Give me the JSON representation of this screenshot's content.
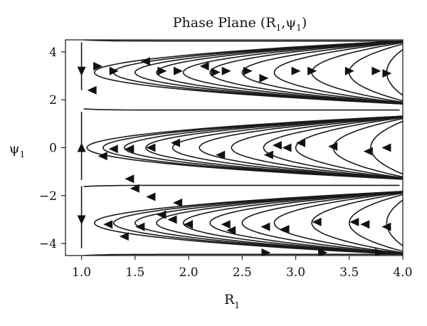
{
  "chart_data": {
    "type": "streamplot",
    "title": "Phase Plane (R",
    "title_sub_1": "1",
    "title_mid": ",ψ",
    "title_sub_2": "1",
    "title_end": ")",
    "xlabel": "R",
    "xlabel_sub": "1",
    "ylabel": "ψ",
    "ylabel_sub": "1",
    "xlim": [
      0.85,
      4.0
    ],
    "ylim": [
      -4.5,
      4.5
    ],
    "x_ticks": [
      1.0,
      1.5,
      2.0,
      2.5,
      3.0,
      3.5,
      4.0
    ],
    "x_tick_labels": [
      "1.0",
      "1.5",
      "2.0",
      "2.5",
      "3.0",
      "3.5",
      "4.0"
    ],
    "y_ticks": [
      -4,
      -2,
      0,
      2,
      4
    ],
    "y_tick_labels": [
      "−4",
      "−2",
      "0",
      "2",
      "4"
    ],
    "grid": false,
    "flow_bands": [
      {
        "center": 3.14,
        "vertex_r": [
          1.12,
          1.3,
          1.5,
          1.7,
          1.95,
          2.2,
          2.5,
          2.8,
          3.15,
          3.5,
          3.85
        ]
      },
      {
        "center": 0.0,
        "vertex_r": [
          1.05,
          1.2,
          1.4,
          1.6,
          1.85,
          2.1,
          2.4,
          2.7,
          3.0,
          3.35,
          3.7
        ]
      },
      {
        "center": -3.14,
        "vertex_r": [
          1.12,
          1.3,
          1.5,
          1.7,
          1.95,
          2.2,
          2.5,
          2.8,
          3.15,
          3.5,
          3.85
        ]
      }
    ],
    "separatrix_lines": [
      1.57,
      -1.57,
      4.45,
      -4.45
    ],
    "axis_line": {
      "r": 1.0,
      "segments": [
        [
          -4.2,
          -1.6
        ],
        [
          -1.35,
          1.5
        ],
        [
          2.4,
          4.4
        ]
      ]
    },
    "arrows": [
      {
        "r": 1.0,
        "psi": 3.2,
        "dir": "down"
      },
      {
        "r": 1.0,
        "psi": 0.0,
        "dir": "up"
      },
      {
        "r": 1.0,
        "psi": -3.0,
        "dir": "down"
      },
      {
        "r": 1.15,
        "psi": 3.4,
        "dir": "right"
      },
      {
        "r": 1.3,
        "psi": 3.2,
        "dir": "right"
      },
      {
        "r": 1.6,
        "psi": 3.6,
        "dir": "left"
      },
      {
        "r": 1.75,
        "psi": 3.2,
        "dir": "right"
      },
      {
        "r": 1.9,
        "psi": 3.2,
        "dir": "right"
      },
      {
        "r": 2.15,
        "psi": 3.4,
        "dir": "left"
      },
      {
        "r": 2.25,
        "psi": 3.15,
        "dir": "right"
      },
      {
        "r": 2.35,
        "psi": 3.2,
        "dir": "right"
      },
      {
        "r": 2.55,
        "psi": 3.2,
        "dir": "right"
      },
      {
        "r": 2.7,
        "psi": 2.9,
        "dir": "right"
      },
      {
        "r": 3.0,
        "psi": 3.2,
        "dir": "right"
      },
      {
        "r": 3.15,
        "psi": 3.2,
        "dir": "right"
      },
      {
        "r": 3.5,
        "psi": 3.2,
        "dir": "right"
      },
      {
        "r": 3.75,
        "psi": 3.2,
        "dir": "right"
      },
      {
        "r": 3.85,
        "psi": 3.1,
        "dir": "right"
      },
      {
        "r": 1.1,
        "psi": 2.4,
        "dir": "left"
      },
      {
        "r": 1.2,
        "psi": -0.35,
        "dir": "left"
      },
      {
        "r": 1.3,
        "psi": -0.05,
        "dir": "left"
      },
      {
        "r": 1.45,
        "psi": -0.05,
        "dir": "left"
      },
      {
        "r": 1.65,
        "psi": 0.0,
        "dir": "left"
      },
      {
        "r": 1.88,
        "psi": 0.2,
        "dir": "left"
      },
      {
        "r": 2.3,
        "psi": -0.3,
        "dir": "left"
      },
      {
        "r": 2.75,
        "psi": -0.3,
        "dir": "left"
      },
      {
        "r": 2.83,
        "psi": 0.1,
        "dir": "left"
      },
      {
        "r": 2.92,
        "psi": 0.0,
        "dir": "left"
      },
      {
        "r": 3.05,
        "psi": 0.2,
        "dir": "left"
      },
      {
        "r": 3.35,
        "psi": 0.05,
        "dir": "left"
      },
      {
        "r": 3.68,
        "psi": -0.15,
        "dir": "left"
      },
      {
        "r": 3.85,
        "psi": 0.0,
        "dir": "left"
      },
      {
        "r": 1.45,
        "psi": -1.3,
        "dir": "left"
      },
      {
        "r": 1.5,
        "psi": -1.7,
        "dir": "left"
      },
      {
        "r": 1.65,
        "psi": -2.05,
        "dir": "left"
      },
      {
        "r": 1.9,
        "psi": -2.3,
        "dir": "left"
      },
      {
        "r": 1.25,
        "psi": -3.2,
        "dir": "left"
      },
      {
        "r": 1.4,
        "psi": -3.7,
        "dir": "left"
      },
      {
        "r": 1.55,
        "psi": -3.3,
        "dir": "left"
      },
      {
        "r": 1.75,
        "psi": -2.8,
        "dir": "left"
      },
      {
        "r": 1.85,
        "psi": -3.0,
        "dir": "left"
      },
      {
        "r": 2.0,
        "psi": -3.2,
        "dir": "left"
      },
      {
        "r": 2.35,
        "psi": -3.2,
        "dir": "left"
      },
      {
        "r": 2.4,
        "psi": -3.45,
        "dir": "left"
      },
      {
        "r": 2.72,
        "psi": -3.3,
        "dir": "left"
      },
      {
        "r": 2.9,
        "psi": -3.4,
        "dir": "left"
      },
      {
        "r": 3.2,
        "psi": -3.1,
        "dir": "left"
      },
      {
        "r": 3.55,
        "psi": -3.1,
        "dir": "left"
      },
      {
        "r": 3.65,
        "psi": -3.2,
        "dir": "left"
      },
      {
        "r": 3.85,
        "psi": -3.3,
        "dir": "left"
      },
      {
        "r": 2.72,
        "psi": -4.38,
        "dir": "right"
      },
      {
        "r": 3.25,
        "psi": -4.38,
        "dir": "right"
      },
      {
        "r": 3.78,
        "psi": -4.38,
        "dir": "right"
      }
    ]
  }
}
